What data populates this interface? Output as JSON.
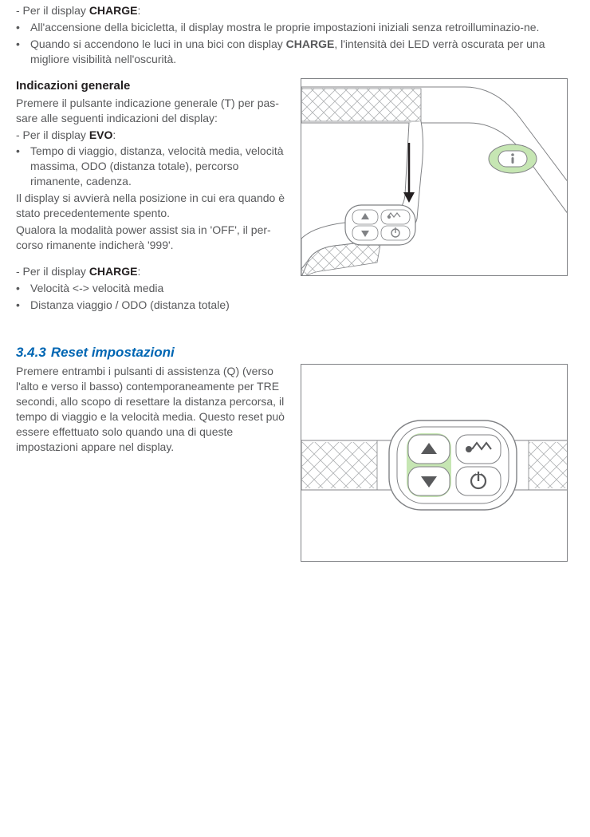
{
  "top": {
    "intro": "- Per il display ",
    "intro_bold": "CHARGE",
    "intro_suffix": ":",
    "bullets": [
      "All'accensione della bicicletta, il display mostra le proprie impostazioni iniziali senza retroilluminazio-ne.",
      "Quando si accendono le luci in una bici con display <b>CHARGE</b>, l'intensità dei LED verrà oscurata per una migliore visibilità nell'oscurità."
    ]
  },
  "indicazioni": {
    "title": "Indicazioni generale",
    "p1": "Premere il pulsante indicazione generale (T) per pas-sare alle seguenti indicazioni del display:",
    "evo_intro": "- Per il display ",
    "evo_bold": "EVO",
    "evo_suffix": ":",
    "evo_bullets": [
      "Tempo di viaggio, distanza, velocità media, velocità massima, ODO (distanza totale), percorso rimanente, cadenza."
    ],
    "p2": "Il display si avvierà nella posizione in cui era quando è stato precedentemente spento.",
    "p3": "Qualora la modalità power assist sia in 'OFF', il per-corso rimanente indicherà '999'.",
    "charge_intro": "- Per il display ",
    "charge_bold": "CHARGE",
    "charge_suffix": ":",
    "charge_bullets": [
      "Velocità <-> velocità media",
      "Distanza viaggio / ODO (distanza totale)"
    ]
  },
  "reset": {
    "num": "3.4.3",
    "title": "Reset impostazioni",
    "body": "Premere entrambi i pulsanti di assistenza (Q) (verso l'alto e verso il basso) contemporaneamente per TRE secondi, allo scopo di resettare la distanza percorsa, il tempo di viaggio e la velocità media. Questo reset può essere effettuato solo quando una di queste impostazioni appare nel display."
  },
  "style": {
    "text_color": "#58595b",
    "bold_color": "#231f20",
    "accent_color": "#0066b3",
    "highlight_fill": "#c6e6b3",
    "line_color": "#808285",
    "figure_border": "#808285",
    "background": "#ffffff"
  }
}
